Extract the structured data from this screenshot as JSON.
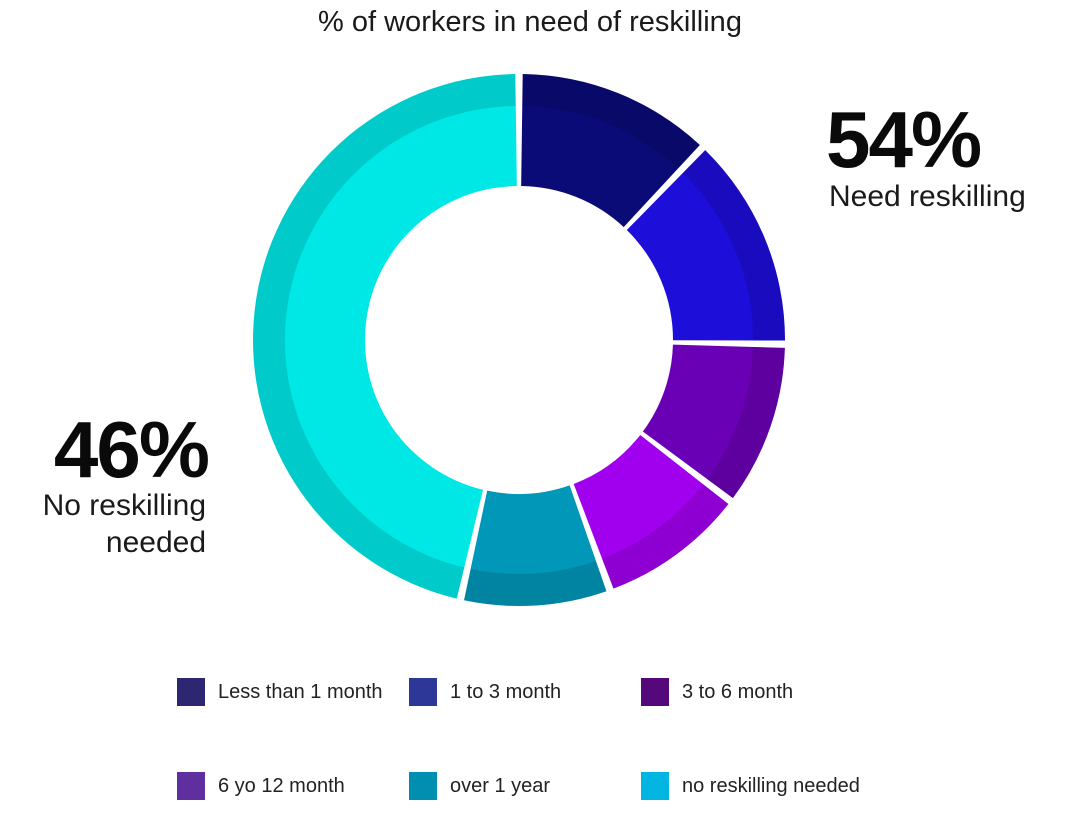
{
  "chart_data": {
    "type": "pie",
    "title": "% of workers in need of reskilling",
    "categories": [
      "Less than 1 month",
      "1 to 3 month",
      "3 to 6 month",
      "6 yo 12 month",
      "over 1 year",
      "no reskilling needed"
    ],
    "values": [
      12,
      13,
      10,
      9,
      9,
      46
    ],
    "colors": [
      "#0b0b78",
      "#1e0ed9",
      "#6a00b6",
      "#a100ee",
      "#0097b8",
      "#00e8e6"
    ],
    "legend_colors": [
      "#2d2670",
      "#2c3798",
      "#55087a",
      "#5f2e9f",
      "#008fb0",
      "#00b5e0"
    ],
    "legend_position": "bottom",
    "style": "donut"
  },
  "annotations": {
    "need": {
      "value": "54%",
      "label": "Need reskilling"
    },
    "none": {
      "value": "46%",
      "label_line1": "No reskilling",
      "label_line2": "needed"
    }
  }
}
